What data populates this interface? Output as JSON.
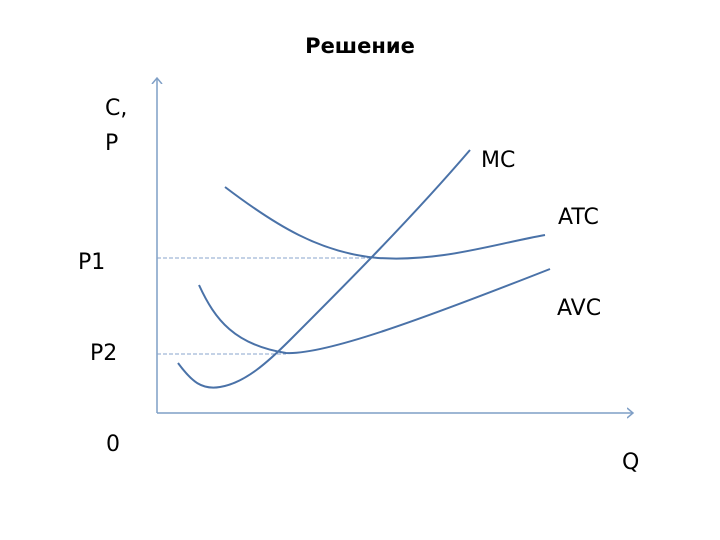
{
  "title": "Решение",
  "axes": {
    "y_label_line1": "C,",
    "y_label_line2": "P",
    "x_label": "Q",
    "origin_label": "0"
  },
  "price_levels": {
    "p1": "P1",
    "p2": "P2"
  },
  "curves": {
    "mc": "MC",
    "atc": "ATC",
    "avc": "AVC"
  },
  "colors": {
    "curve": "#4a72a8",
    "axis": "#7f9fc6",
    "guide": "#8aa6cc"
  }
}
